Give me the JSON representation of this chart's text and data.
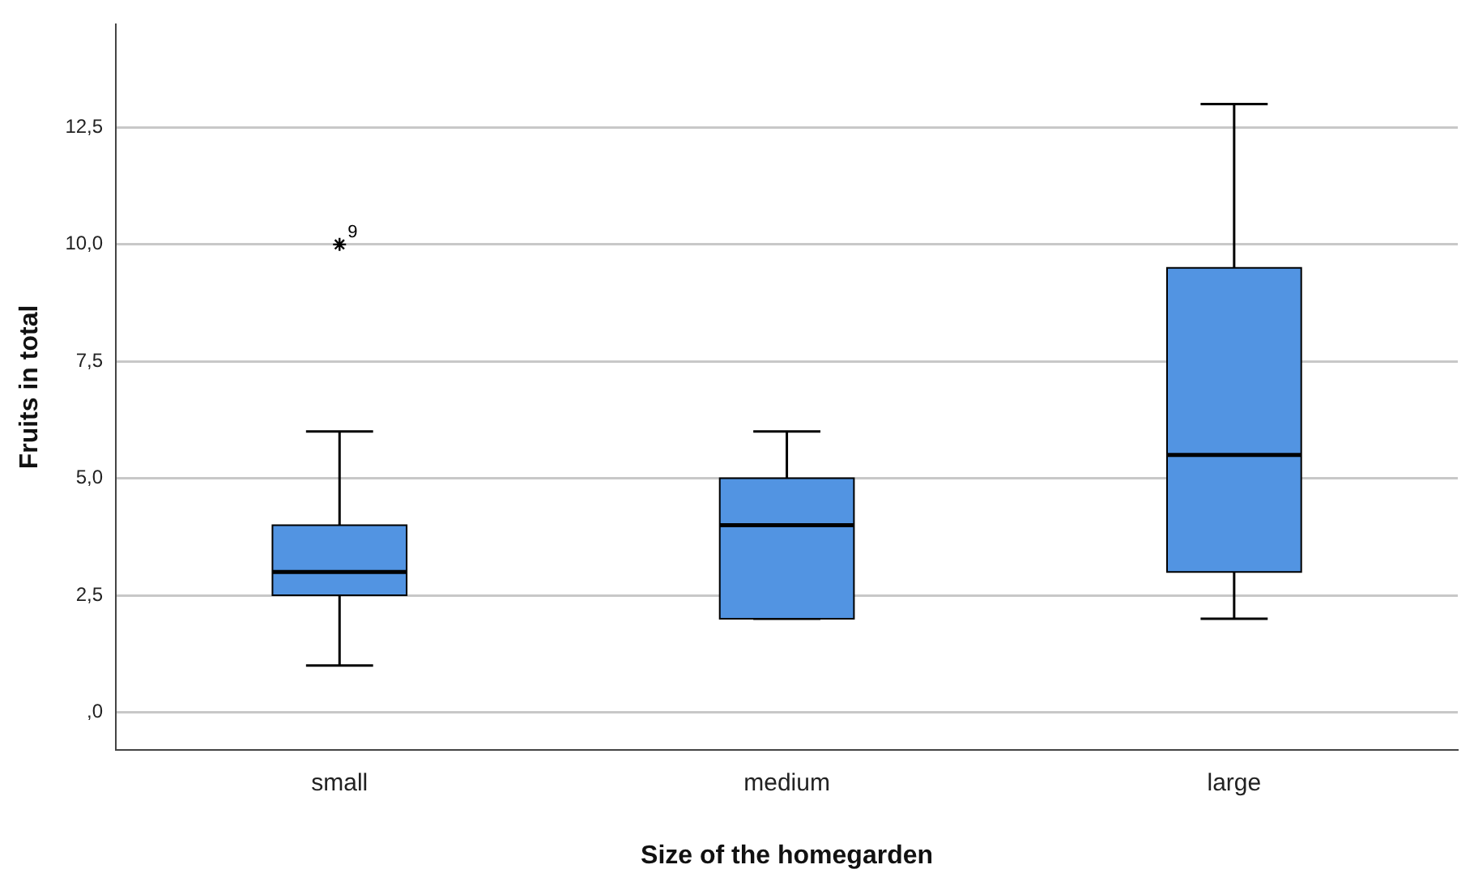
{
  "chart_data": {
    "type": "box",
    "xlabel": "Size of the homegarden",
    "ylabel": "Fruits in total",
    "categories": [
      "small",
      "medium",
      "large"
    ],
    "color": "#5294e2",
    "boxes": [
      {
        "low": 1,
        "q1": 2.5,
        "median": 3,
        "q3": 4,
        "high": 6,
        "outliers": [
          10
        ]
      },
      {
        "low": 2,
        "q1": 2,
        "median": 4,
        "q3": 5,
        "high": 6
      },
      {
        "low": 2,
        "q1": 3,
        "median": 5.5,
        "q3": 9.5,
        "high": 13
      }
    ],
    "marker": "star",
    "annotations": [
      "9"
    ],
    "ylim": [
      -0.8,
      14.7
    ],
    "yticks": [
      {
        "value": 0,
        "label": ",0"
      },
      {
        "value": 2.5,
        "label": "2,5"
      },
      {
        "value": 5,
        "label": "5,0"
      },
      {
        "value": 7.5,
        "label": "7,5"
      },
      {
        "value": 10,
        "label": "10,0"
      },
      {
        "value": 12.5,
        "label": "12,5"
      }
    ],
    "grid": "y",
    "legend": false
  }
}
